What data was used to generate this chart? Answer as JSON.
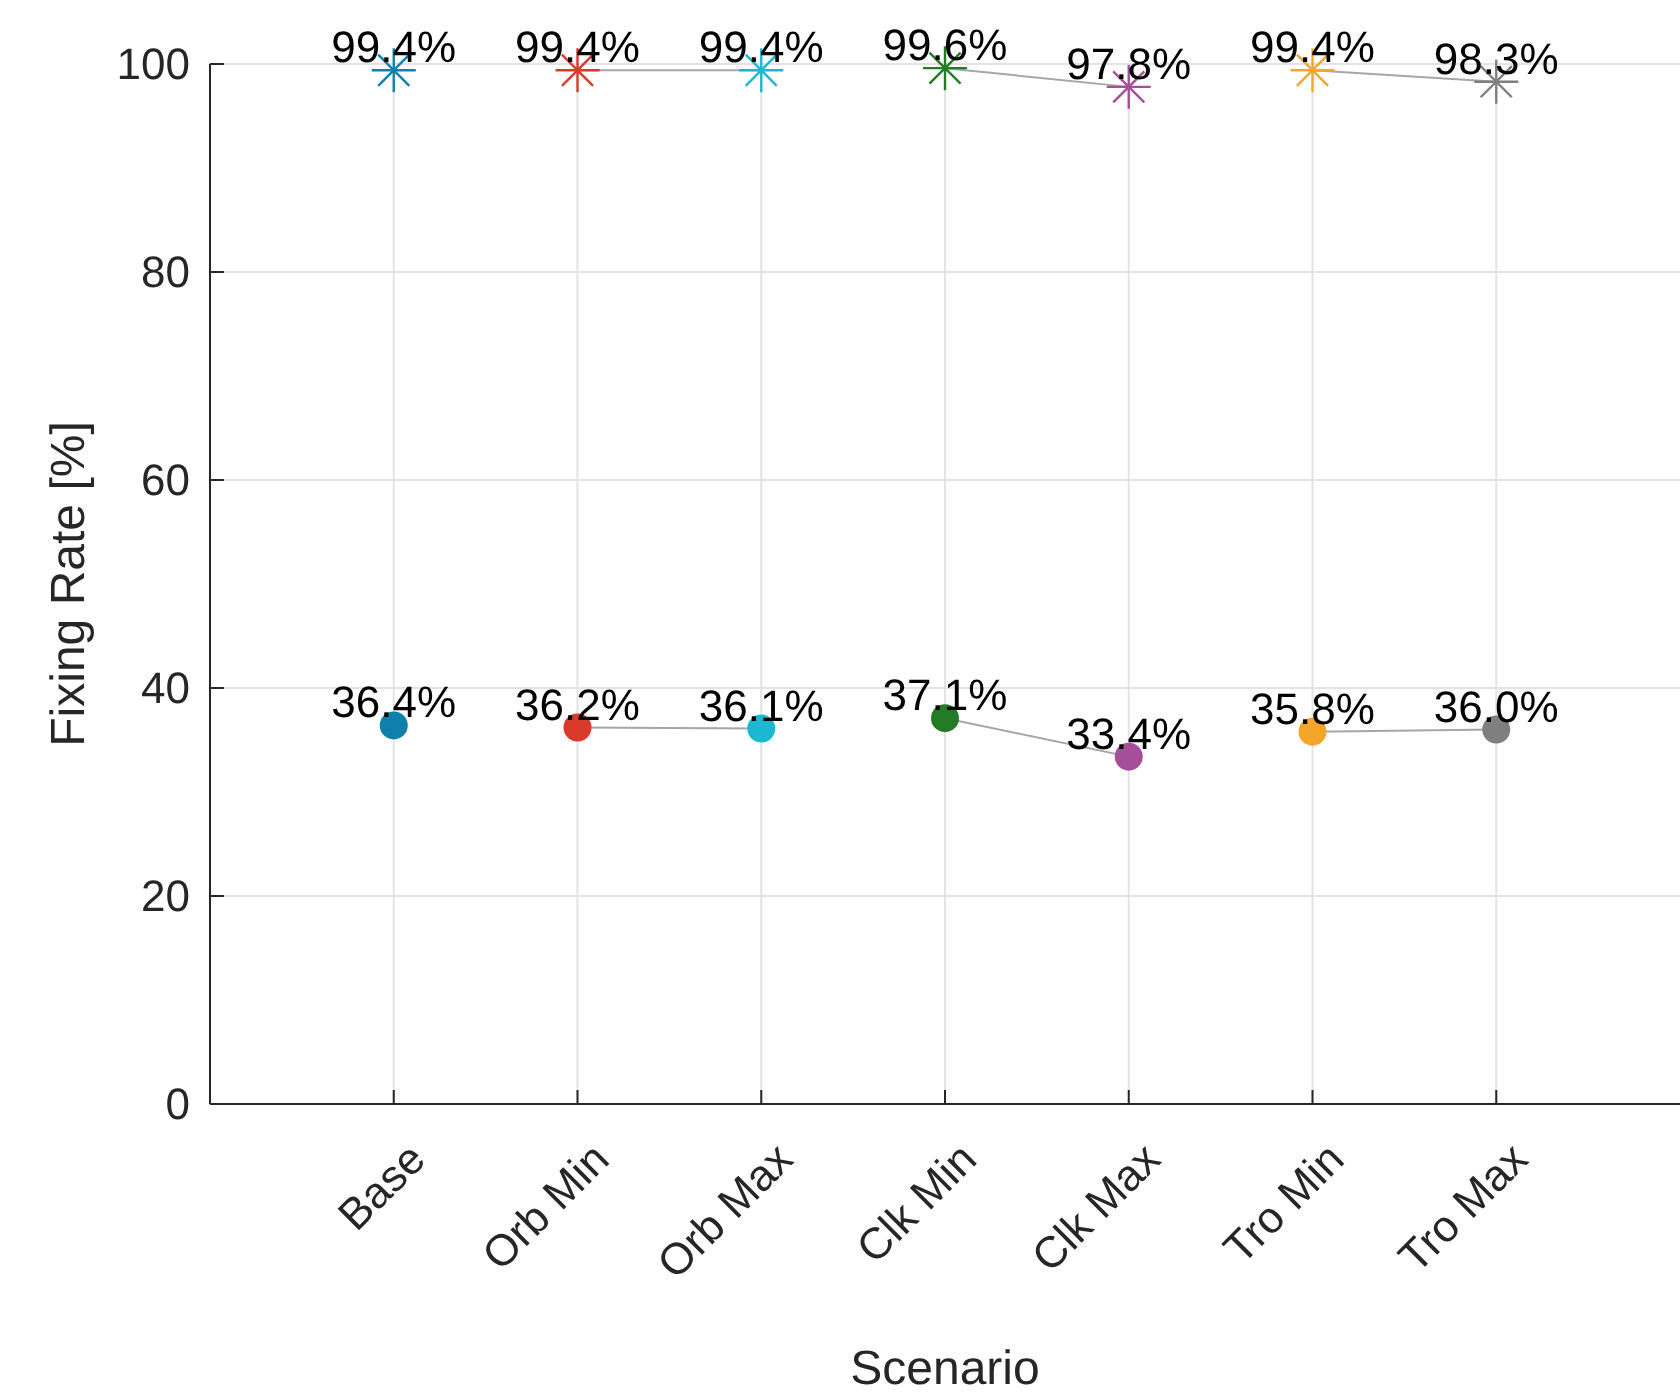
{
  "chart_data": {
    "type": "scatter",
    "xlabel": "Scenario",
    "ylabel": "Fixing Rate [%]",
    "categories": [
      "Base",
      "Orb Min",
      "Orb Max",
      "Clk Min",
      "Clk Max",
      "Tro Min",
      "Tro Max"
    ],
    "ylim": [
      0,
      100
    ],
    "yticks": [
      0,
      20,
      40,
      60,
      80,
      100
    ],
    "grid": true,
    "series": [
      {
        "marker": "cross",
        "colors": [
          "#0f7fae",
          null,
          null,
          null,
          null,
          null,
          null
        ],
        "values": [
          99.4,
          null,
          null,
          null,
          null,
          null,
          null
        ],
        "value_labels": [
          "99.4%",
          null,
          null,
          null,
          null,
          null,
          null
        ]
      },
      {
        "type": "line",
        "color": "#a6a6a6",
        "marker": "cross",
        "colors": [
          null,
          "#d93a2b",
          "#1cb8d2",
          null,
          null,
          null,
          null
        ],
        "values": [
          null,
          99.4,
          99.4,
          null,
          null,
          null,
          null
        ],
        "value_labels": [
          null,
          "99.4%",
          "99.4%",
          null,
          null,
          null,
          null
        ]
      },
      {
        "type": "line",
        "color": "#a6a6a6",
        "marker": "cross",
        "colors": [
          null,
          null,
          null,
          "#237c25",
          "#a54f9a",
          null,
          null
        ],
        "values": [
          null,
          null,
          null,
          99.6,
          97.8,
          null,
          null
        ],
        "value_labels": [
          null,
          null,
          null,
          "99.6%",
          "97.8%",
          null,
          null
        ]
      },
      {
        "type": "line",
        "color": "#a6a6a6",
        "marker": "cross",
        "colors": [
          null,
          null,
          null,
          null,
          null,
          "#f4a62a",
          "#7f7f7f"
        ],
        "values": [
          null,
          null,
          null,
          null,
          null,
          99.4,
          98.3
        ],
        "value_labels": [
          null,
          null,
          null,
          null,
          null,
          "99.4%",
          "98.3%"
        ]
      },
      {
        "marker": "circle",
        "colors": [
          "#0f7fae",
          null,
          null,
          null,
          null,
          null,
          null
        ],
        "values": [
          36.4,
          null,
          null,
          null,
          null,
          null,
          null
        ],
        "value_labels": [
          "36.4%",
          null,
          null,
          null,
          null,
          null,
          null
        ]
      },
      {
        "type": "line",
        "color": "#a6a6a6",
        "marker": "circle",
        "colors": [
          null,
          "#d93a2b",
          "#1cb8d2",
          null,
          null,
          null,
          null
        ],
        "values": [
          null,
          36.2,
          36.1,
          null,
          null,
          null,
          null
        ],
        "value_labels": [
          null,
          "36.2%",
          "36.1%",
          null,
          null,
          null,
          null
        ]
      },
      {
        "type": "line",
        "color": "#a6a6a6",
        "marker": "circle",
        "colors": [
          null,
          null,
          null,
          "#237c25",
          "#a54f9a",
          null,
          null
        ],
        "values": [
          null,
          null,
          null,
          37.1,
          33.4,
          null,
          null
        ],
        "value_labels": [
          null,
          null,
          null,
          "37.1%",
          "33.4%",
          null,
          null
        ]
      },
      {
        "type": "line",
        "color": "#a6a6a6",
        "marker": "circle",
        "colors": [
          null,
          null,
          null,
          null,
          null,
          "#f4a62a",
          "#7f7f7f"
        ],
        "values": [
          null,
          null,
          null,
          null,
          null,
          35.8,
          36.0
        ],
        "value_labels": [
          null,
          null,
          null,
          null,
          null,
          "35.8%",
          "36.0%"
        ]
      }
    ]
  }
}
